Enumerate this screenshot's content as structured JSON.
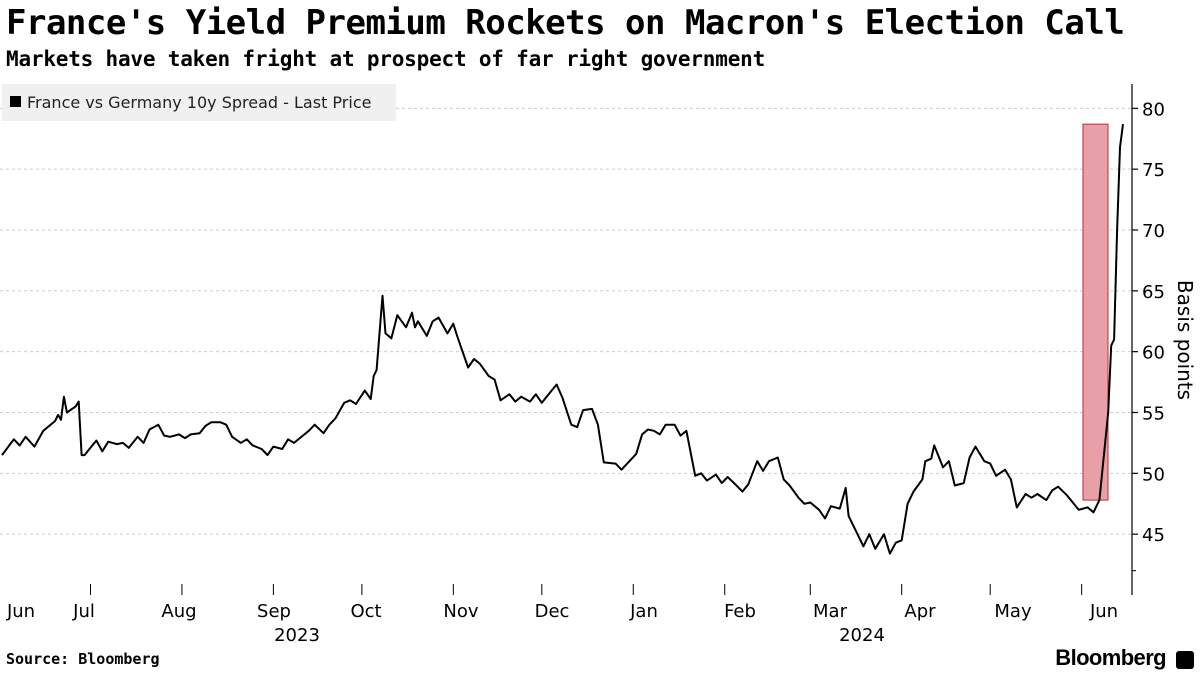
{
  "header": {
    "title": "France's Yield Premium Rockets on Macron's Election Call",
    "subtitle": "Markets have taken fright at prospect of far right government"
  },
  "footer": {
    "source": "Source: Bloomberg",
    "brand": "Bloomberg"
  },
  "colors": {
    "line": "#000000",
    "highlight_fill": "#e8a0a8",
    "highlight_stroke": "#c0283c",
    "grid": "#cccccc",
    "legend_bg": "#f0f0f0"
  },
  "chart_data": {
    "type": "line",
    "legend": [
      {
        "name": "France vs Germany 10y Spread - Last Price",
        "marker": "square",
        "color": "#000000"
      }
    ],
    "ylabel": "Basis points",
    "y_axis_side": "right",
    "ylim": [
      40,
      82
    ],
    "y_ticks": [
      45,
      50,
      55,
      60,
      65,
      70,
      75,
      80
    ],
    "grid": "horizontal dashed",
    "legend_position": "top-left",
    "x_tick_labels": [
      "Jun",
      "Jul",
      "Aug",
      "Sep",
      "Oct",
      "Nov",
      "Dec",
      "Jan",
      "Feb",
      "Mar",
      "Apr",
      "May",
      "Jun"
    ],
    "x_year_labels": [
      {
        "label": "2023",
        "under": "Sep"
      },
      {
        "label": "2024",
        "under": "Mar"
      }
    ],
    "xlim": [
      "2023-06-01",
      "2024-06-14"
    ],
    "highlight": {
      "x_start": "2024-06-07",
      "x_end": "2024-06-14",
      "y_bottom": 47.8,
      "y_top": 78.7
    },
    "series": [
      {
        "name": "France vs Germany 10y Spread - Last Price",
        "points": [
          [
            "2023-06-01",
            51.5
          ],
          [
            "2023-06-05",
            52.8
          ],
          [
            "2023-06-07",
            52.3
          ],
          [
            "2023-06-09",
            53.0
          ],
          [
            "2023-06-12",
            52.2
          ],
          [
            "2023-06-15",
            53.5
          ],
          [
            "2023-06-19",
            54.3
          ],
          [
            "2023-06-20",
            54.8
          ],
          [
            "2023-06-21",
            54.4
          ],
          [
            "2023-06-22",
            56.3
          ],
          [
            "2023-06-23",
            55.0
          ],
          [
            "2023-06-26",
            55.5
          ],
          [
            "2023-06-27",
            55.9
          ],
          [
            "2023-06-28",
            51.5
          ],
          [
            "2023-06-29",
            51.5
          ],
          [
            "2023-06-30",
            51.8
          ],
          [
            "2023-07-03",
            52.7
          ],
          [
            "2023-07-05",
            51.8
          ],
          [
            "2023-07-07",
            52.6
          ],
          [
            "2023-07-10",
            52.4
          ],
          [
            "2023-07-12",
            52.5
          ],
          [
            "2023-07-14",
            52.1
          ],
          [
            "2023-07-17",
            53.0
          ],
          [
            "2023-07-19",
            52.5
          ],
          [
            "2023-07-21",
            53.6
          ],
          [
            "2023-07-24",
            54.0
          ],
          [
            "2023-07-26",
            53.1
          ],
          [
            "2023-07-28",
            53.0
          ],
          [
            "2023-07-31",
            53.2
          ],
          [
            "2023-08-02",
            52.9
          ],
          [
            "2023-08-04",
            53.2
          ],
          [
            "2023-08-07",
            53.3
          ],
          [
            "2023-08-09",
            53.9
          ],
          [
            "2023-08-11",
            54.2
          ],
          [
            "2023-08-14",
            54.2
          ],
          [
            "2023-08-16",
            54.0
          ],
          [
            "2023-08-18",
            53.0
          ],
          [
            "2023-08-21",
            52.5
          ],
          [
            "2023-08-23",
            52.8
          ],
          [
            "2023-08-25",
            52.3
          ],
          [
            "2023-08-28",
            52.0
          ],
          [
            "2023-08-30",
            51.5
          ],
          [
            "2023-09-01",
            52.2
          ],
          [
            "2023-09-04",
            52.0
          ],
          [
            "2023-09-06",
            52.8
          ],
          [
            "2023-09-08",
            52.5
          ],
          [
            "2023-09-11",
            53.1
          ],
          [
            "2023-09-13",
            53.5
          ],
          [
            "2023-09-15",
            54.0
          ],
          [
            "2023-09-18",
            53.3
          ],
          [
            "2023-09-20",
            54.0
          ],
          [
            "2023-09-22",
            54.5
          ],
          [
            "2023-09-25",
            55.8
          ],
          [
            "2023-09-27",
            56.0
          ],
          [
            "2023-09-29",
            55.7
          ],
          [
            "2023-10-02",
            56.8
          ],
          [
            "2023-10-04",
            56.1
          ],
          [
            "2023-10-05",
            58.0
          ],
          [
            "2023-10-06",
            58.5
          ],
          [
            "2023-10-08",
            64.6
          ],
          [
            "2023-10-09",
            61.5
          ],
          [
            "2023-10-11",
            61.1
          ],
          [
            "2023-10-13",
            63.0
          ],
          [
            "2023-10-16",
            62.0
          ],
          [
            "2023-10-18",
            63.2
          ],
          [
            "2023-10-19",
            62.0
          ],
          [
            "2023-10-20",
            62.5
          ],
          [
            "2023-10-23",
            61.3
          ],
          [
            "2023-10-25",
            62.5
          ],
          [
            "2023-10-27",
            62.8
          ],
          [
            "2023-10-30",
            61.5
          ],
          [
            "2023-11-01",
            62.3
          ],
          [
            "2023-11-02",
            61.5
          ],
          [
            "2023-11-03",
            60.8
          ],
          [
            "2023-11-06",
            58.7
          ],
          [
            "2023-11-08",
            59.4
          ],
          [
            "2023-11-10",
            59.0
          ],
          [
            "2023-11-13",
            58.0
          ],
          [
            "2023-11-15",
            57.7
          ],
          [
            "2023-11-17",
            56.0
          ],
          [
            "2023-11-20",
            56.5
          ],
          [
            "2023-11-22",
            55.9
          ],
          [
            "2023-11-24",
            56.3
          ],
          [
            "2023-11-27",
            55.9
          ],
          [
            "2023-11-29",
            56.5
          ],
          [
            "2023-12-01",
            55.8
          ],
          [
            "2023-12-04",
            56.7
          ],
          [
            "2023-12-06",
            57.3
          ],
          [
            "2023-12-08",
            56.2
          ],
          [
            "2023-12-11",
            54.0
          ],
          [
            "2023-12-13",
            53.8
          ],
          [
            "2023-12-15",
            55.2
          ],
          [
            "2023-12-18",
            55.3
          ],
          [
            "2023-12-20",
            54.0
          ],
          [
            "2023-12-22",
            50.9
          ],
          [
            "2023-12-26",
            50.8
          ],
          [
            "2023-12-28",
            50.3
          ],
          [
            "2024-01-02",
            51.6
          ],
          [
            "2024-01-04",
            53.2
          ],
          [
            "2024-01-06",
            53.6
          ],
          [
            "2024-01-08",
            53.5
          ],
          [
            "2024-01-10",
            53.2
          ],
          [
            "2024-01-12",
            54.0
          ],
          [
            "2024-01-15",
            54.0
          ],
          [
            "2024-01-17",
            53.1
          ],
          [
            "2024-01-19",
            53.5
          ],
          [
            "2024-01-22",
            49.8
          ],
          [
            "2024-01-24",
            50.0
          ],
          [
            "2024-01-26",
            49.4
          ],
          [
            "2024-01-29",
            49.9
          ],
          [
            "2024-01-31",
            49.2
          ],
          [
            "2024-02-02",
            49.7
          ],
          [
            "2024-02-05",
            49.0
          ],
          [
            "2024-02-07",
            48.5
          ],
          [
            "2024-02-09",
            49.1
          ],
          [
            "2024-02-12",
            51.0
          ],
          [
            "2024-02-14",
            50.2
          ],
          [
            "2024-02-16",
            51.0
          ],
          [
            "2024-02-19",
            51.3
          ],
          [
            "2024-02-21",
            49.5
          ],
          [
            "2024-02-23",
            49.0
          ],
          [
            "2024-02-26",
            48.0
          ],
          [
            "2024-02-28",
            47.5
          ],
          [
            "2024-03-01",
            47.6
          ],
          [
            "2024-03-04",
            47.0
          ],
          [
            "2024-03-06",
            46.3
          ],
          [
            "2024-03-08",
            47.3
          ],
          [
            "2024-03-11",
            47.1
          ],
          [
            "2024-03-13",
            48.8
          ],
          [
            "2024-03-14",
            46.5
          ],
          [
            "2024-03-17",
            45.0
          ],
          [
            "2024-03-19",
            44.0
          ],
          [
            "2024-03-21",
            45.0
          ],
          [
            "2024-03-23",
            43.8
          ],
          [
            "2024-03-26",
            45.0
          ],
          [
            "2024-03-28",
            43.4
          ],
          [
            "2024-03-30",
            44.3
          ],
          [
            "2024-04-01",
            44.5
          ],
          [
            "2024-04-03",
            47.5
          ],
          [
            "2024-04-05",
            48.5
          ],
          [
            "2024-04-08",
            49.5
          ],
          [
            "2024-04-09",
            51.0
          ],
          [
            "2024-04-11",
            51.2
          ],
          [
            "2024-04-12",
            52.3
          ],
          [
            "2024-04-15",
            50.5
          ],
          [
            "2024-04-17",
            51.0
          ],
          [
            "2024-04-19",
            49.0
          ],
          [
            "2024-04-22",
            49.2
          ],
          [
            "2024-04-24",
            51.3
          ],
          [
            "2024-04-26",
            52.2
          ],
          [
            "2024-04-29",
            51.0
          ],
          [
            "2024-05-01",
            50.8
          ],
          [
            "2024-05-03",
            49.8
          ],
          [
            "2024-05-06",
            50.3
          ],
          [
            "2024-05-08",
            49.5
          ],
          [
            "2024-05-10",
            47.2
          ],
          [
            "2024-05-13",
            48.3
          ],
          [
            "2024-05-15",
            48.0
          ],
          [
            "2024-05-17",
            48.3
          ],
          [
            "2024-05-20",
            47.8
          ],
          [
            "2024-05-22",
            48.6
          ],
          [
            "2024-05-24",
            48.9
          ],
          [
            "2024-05-27",
            48.2
          ],
          [
            "2024-05-29",
            47.6
          ],
          [
            "2024-05-31",
            47.0
          ],
          [
            "2024-06-03",
            47.2
          ],
          [
            "2024-06-05",
            46.8
          ],
          [
            "2024-06-07",
            47.8
          ],
          [
            "2024-06-10",
            55.0
          ],
          [
            "2024-06-11",
            60.5
          ],
          [
            "2024-06-12",
            61.0
          ],
          [
            "2024-06-13",
            70.0
          ],
          [
            "2024-06-14",
            76.8
          ],
          [
            "2024-06-14",
            78.7
          ]
        ]
      }
    ]
  }
}
